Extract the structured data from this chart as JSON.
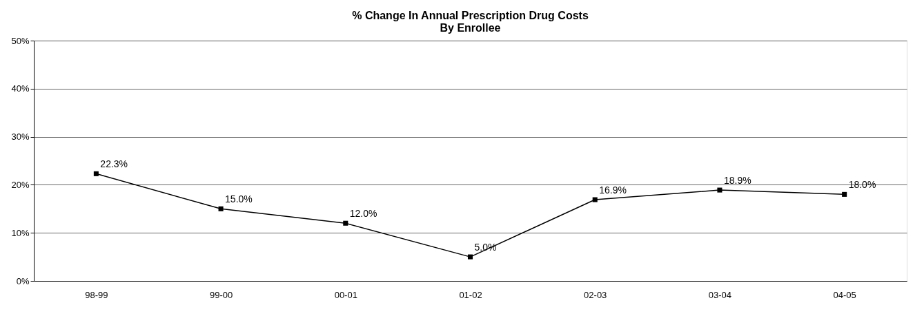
{
  "chart_data": {
    "type": "line",
    "title": [
      "% Change In Annual Prescription Drug Costs",
      "By Enrollee"
    ],
    "categories": [
      "98-99",
      "99-00",
      "00-01",
      "01-02",
      "02-03",
      "03-04",
      "04-05"
    ],
    "series": [
      {
        "color": "#000000",
        "values": [
          22.3,
          15.0,
          12.0,
          5.0,
          16.9,
          18.9,
          18.0
        ],
        "value_labels": [
          "22.3%",
          "15.0%",
          "12.0%",
          "5.0%",
          "16.9%",
          "18.9%",
          "18.0%"
        ]
      }
    ],
    "ylim": [
      0,
      50
    ],
    "yticks": [
      {
        "value": 0,
        "label": "0%"
      },
      {
        "value": 10,
        "label": "10%"
      },
      {
        "value": 20,
        "label": "20%"
      },
      {
        "value": 30,
        "label": "30%"
      },
      {
        "value": 40,
        "label": "40%"
      },
      {
        "value": 50,
        "label": "50%"
      }
    ],
    "grid": "y",
    "marker": "square",
    "line_style": "solid"
  }
}
